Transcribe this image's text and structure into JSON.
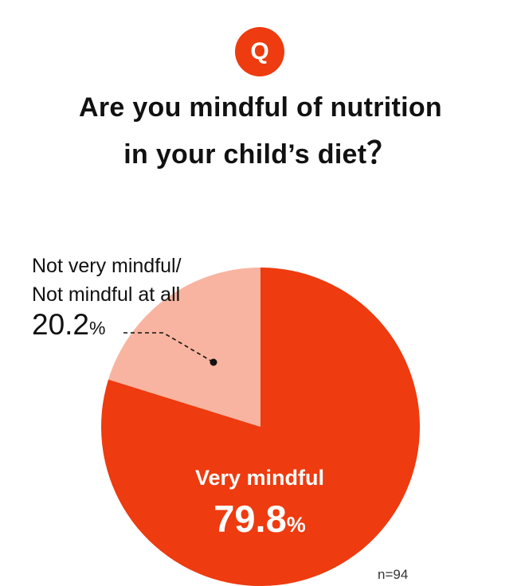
{
  "question_badge": "Q",
  "title_line1": "Are you mindful of nutrition",
  "title_line2": "in your child’s diet",
  "title_qmark": "？",
  "chart_data": {
    "type": "pie",
    "title": "Are you mindful of nutrition in your child’s diet？",
    "slices": [
      {
        "label_line1": "Very mindful",
        "label_line2": "",
        "value": 79.8,
        "value_text": "79.8",
        "unit": "%",
        "color": "#ee3b0f"
      },
      {
        "label_line1": "Not very mindful/",
        "label_line2": "Not mindful at all",
        "value": 20.2,
        "value_text": "20.2",
        "unit": "%",
        "color": "#f8b4a0"
      }
    ],
    "start": "12 o'clock",
    "direction": "clockwise",
    "note": "n=94"
  }
}
